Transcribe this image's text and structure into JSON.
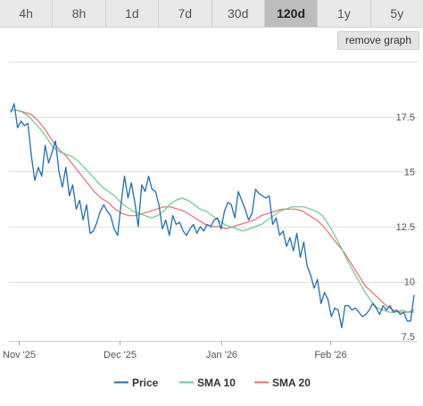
{
  "toolbar": {
    "tabs": [
      {
        "label": "4h",
        "active": false
      },
      {
        "label": "8h",
        "active": false
      },
      {
        "label": "1d",
        "active": false
      },
      {
        "label": "7d",
        "active": false
      },
      {
        "label": "30d",
        "active": false
      },
      {
        "label": "120d",
        "active": true
      },
      {
        "label": "1y",
        "active": false
      },
      {
        "label": "5y",
        "active": false
      }
    ],
    "remove_label": "remove graph"
  },
  "chart_data": {
    "type": "line",
    "x_ticks": [
      "Nov '25",
      "Dec '25",
      "Jan '26",
      "Feb '26"
    ],
    "y_ticks": [
      7.5,
      10,
      12.5,
      15,
      17.5
    ],
    "ylim": [
      7.3,
      20.3
    ],
    "grid": true,
    "legend_position": "bottom",
    "series": [
      {
        "name": "Price",
        "color": "#1f6fb5",
        "values": [
          17.7,
          18.1,
          17.0,
          17.3,
          17.1,
          17.2,
          15.7,
          14.6,
          15.2,
          14.8,
          16.2,
          15.4,
          15.9,
          16.4,
          15.0,
          14.3,
          15.2,
          13.9,
          14.4,
          13.3,
          13.7,
          12.8,
          13.5,
          12.2,
          12.3,
          12.7,
          13.2,
          13.5,
          13.2,
          13.0,
          12.4,
          12.1,
          13.5,
          14.8,
          13.8,
          14.5,
          13.6,
          12.5,
          14.4,
          14.1,
          14.8,
          14.2,
          14.1,
          13.5,
          12.4,
          12.8,
          12.1,
          13.0,
          12.6,
          12.7,
          12.3,
          12.1,
          12.4,
          12.6,
          12.2,
          12.5,
          12.3,
          12.6,
          12.5,
          12.8,
          12.9,
          12.4,
          13.2,
          13.6,
          13.5,
          12.9,
          14.1,
          13.7,
          13.3,
          12.8,
          13.1,
          14.2,
          14.0,
          13.9,
          13.8,
          13.9,
          12.6,
          12.9,
          12.1,
          12.3,
          11.6,
          12.0,
          11.4,
          12.2,
          11.1,
          11.8,
          10.7,
          10.3,
          9.7,
          10.1,
          9.0,
          9.5,
          9.2,
          8.4,
          8.8,
          8.7,
          7.9,
          8.9,
          8.9,
          8.7,
          8.8,
          8.6,
          8.4,
          8.5,
          8.7,
          9.0,
          8.8,
          8.5,
          8.9,
          8.7,
          8.9,
          8.6,
          8.7,
          8.5,
          8.6,
          8.2,
          8.2,
          9.4
        ]
      },
      {
        "name": "SMA 10",
        "color": "#66cc88",
        "values": [
          17.8,
          17.8,
          17.7,
          17.5,
          17.2,
          16.9,
          16.5,
          16.1,
          15.9,
          15.8,
          15.7,
          15.5,
          15.2,
          14.9,
          14.6,
          14.3,
          14.1,
          13.9,
          13.6,
          13.4,
          13.2,
          13.1,
          13.0,
          12.9,
          13.0,
          13.2,
          13.5,
          13.7,
          13.8,
          13.7,
          13.5,
          13.3,
          13.2,
          13.0,
          12.8,
          12.6,
          12.5,
          12.4,
          12.3,
          12.4,
          12.5,
          12.6,
          12.8,
          13.0,
          13.2,
          13.3,
          13.4,
          13.4,
          13.4,
          13.3,
          13.2,
          13.0,
          12.6,
          12.1,
          11.6,
          11.0,
          10.5,
          10.0,
          9.5,
          9.1,
          8.8,
          8.7,
          8.6,
          8.6,
          8.7,
          8.6,
          8.6
        ]
      },
      {
        "name": "SMA 20",
        "color": "#e86d6d",
        "values": [
          17.8,
          17.8,
          17.7,
          17.6,
          17.3,
          16.9,
          16.4,
          16.0,
          15.7,
          15.3,
          14.9,
          14.5,
          14.1,
          13.8,
          13.6,
          13.3,
          13.1,
          13.0,
          13.0,
          13.1,
          13.2,
          13.3,
          13.4,
          13.4,
          13.3,
          13.2,
          13.0,
          12.8,
          12.6,
          12.5,
          12.5,
          12.4,
          12.5,
          12.6,
          12.7,
          12.8,
          13.0,
          13.1,
          13.2,
          13.3,
          13.3,
          13.3,
          13.2,
          13.0,
          12.8,
          12.5,
          12.1,
          11.7,
          11.3,
          10.8,
          10.3,
          9.8,
          9.5,
          9.2,
          8.9,
          8.7,
          8.6,
          8.6,
          8.7
        ]
      }
    ]
  }
}
